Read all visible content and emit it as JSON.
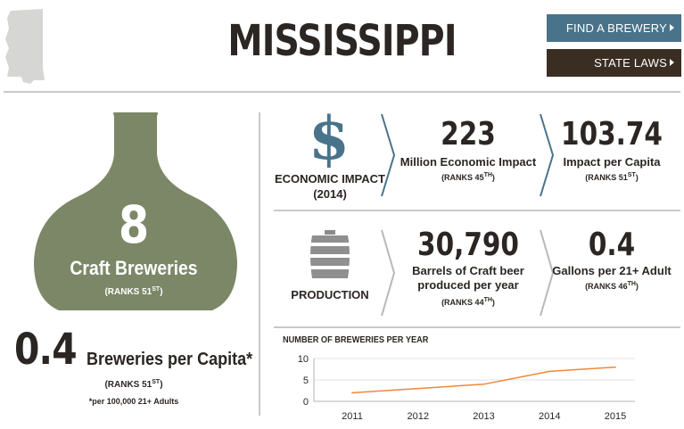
{
  "header": {
    "title": "MISSISSIPPI",
    "find_brewery_label": "FIND A BREWERY",
    "state_laws_label": "STATE LAWS"
  },
  "colors": {
    "bottle": "#7b8766",
    "accent_blue": "#49738a",
    "dark_brown": "#3a2e22",
    "chevron_blue": "#49738a",
    "chevron_gray": "#b8b8b8",
    "line_orange": "#f0873b"
  },
  "breweries": {
    "count": "8",
    "label": "Craft Breweries",
    "rank_prefix": "(RANKS 51",
    "rank_suffix": "ST",
    "rank_close": ")"
  },
  "per_capita": {
    "value": "0.4",
    "label": "Breweries per Capita*",
    "rank_prefix": "(RANKS 51",
    "rank_suffix": "ST",
    "rank_close": ")",
    "note": "*per 100,000 21+ Adults"
  },
  "economic": {
    "icon": "dollar-icon",
    "section_label_line1": "ECONOMIC IMPACT",
    "section_label_line2": "(2014)",
    "impact_value": "223",
    "impact_label": "Million Economic Impact",
    "impact_rank_prefix": "(RANKS 45",
    "impact_rank_suffix": "TH",
    "impact_rank_close": ")",
    "per_capita_value": "103.74",
    "per_capita_label": "Impact per Capita",
    "per_capita_rank_prefix": "(RANKS 51",
    "per_capita_rank_suffix": "ST",
    "per_capita_rank_close": ")"
  },
  "production": {
    "icon": "keg-icon",
    "section_label": "PRODUCTION",
    "barrels_value": "30,790",
    "barrels_label_line1": "Barrels of Craft beer",
    "barrels_label_line2": "produced per year",
    "barrels_rank_prefix": "(RANKS 44",
    "barrels_rank_suffix": "TH",
    "barrels_rank_close": ")",
    "gallons_value": "0.4",
    "gallons_label": "Gallons per 21+ Adult",
    "gallons_rank_prefix": "(RANKS 46",
    "gallons_rank_suffix": "TH",
    "gallons_rank_close": ")"
  },
  "chart_data": {
    "type": "line",
    "title": "NUMBER OF BREWERIES PER YEAR",
    "x": [
      "2011",
      "2012",
      "2013",
      "2014",
      "2015"
    ],
    "y_ticks": [
      "0",
      "5",
      "10"
    ],
    "ylim": [
      0,
      10
    ],
    "series": [
      {
        "values": [
          2,
          3,
          4,
          7,
          8
        ]
      }
    ],
    "grid": true
  }
}
